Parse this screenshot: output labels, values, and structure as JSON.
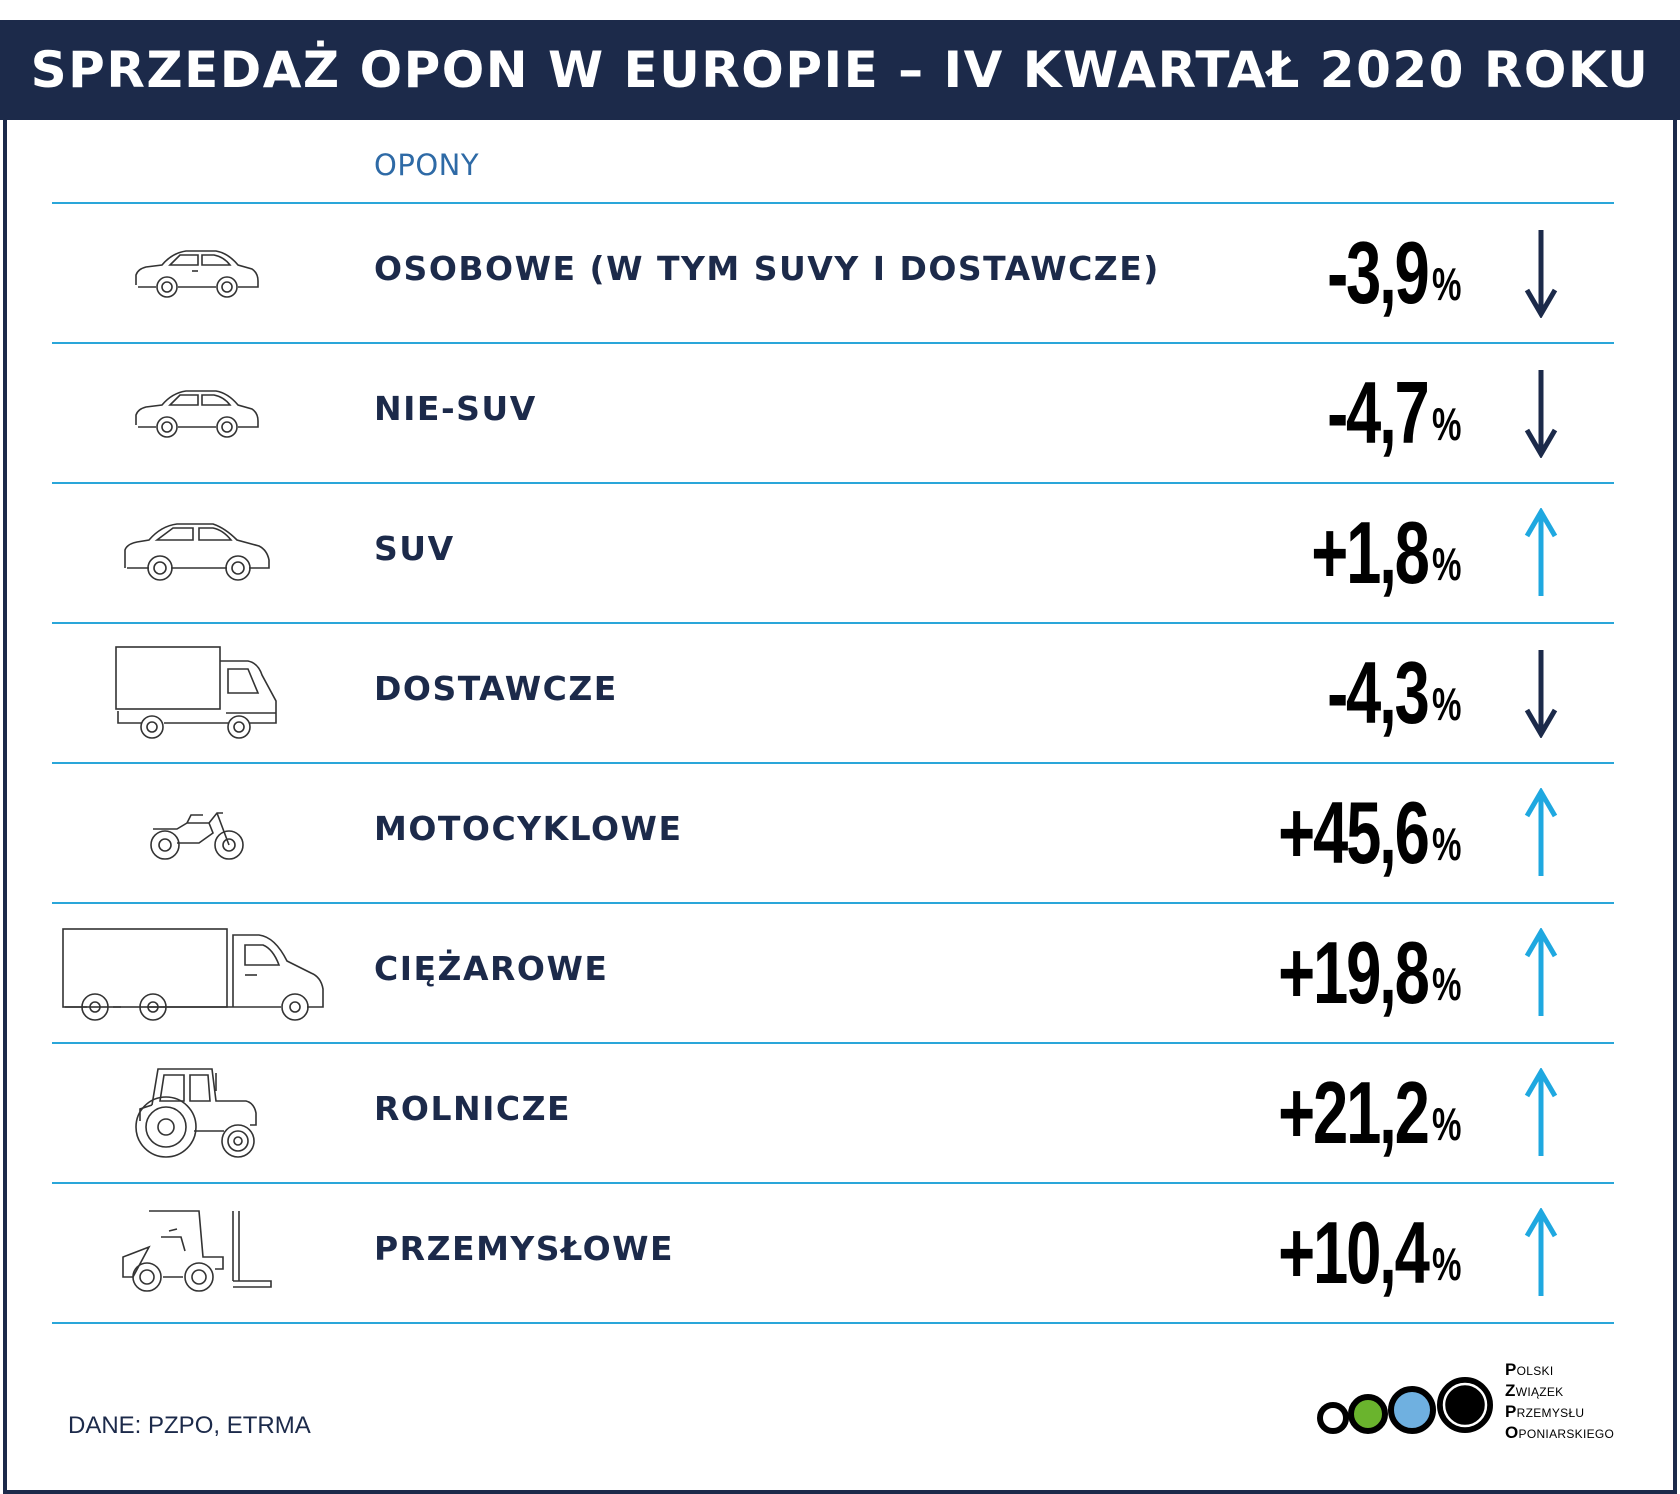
{
  "header": {
    "title": "SPRZEDAŻ OPON W EUROPIE – IV KWARTAŁ 2020 ROKU"
  },
  "column_label": "OPONY",
  "rows": [
    {
      "label": "OSOBOWE (W TYM SUVY I DOSTAWCZE)",
      "value": "-3,9",
      "unit": "%",
      "trend": "down",
      "icon": "car-icon"
    },
    {
      "label": "NIE-SUV",
      "value": "-4,7",
      "unit": "%",
      "trend": "down",
      "icon": "car-icon"
    },
    {
      "label": "SUV",
      "value": "+1,8",
      "unit": "%",
      "trend": "up",
      "icon": "suv-icon"
    },
    {
      "label": "DOSTAWCZE",
      "value": "-4,3",
      "unit": "%",
      "trend": "down",
      "icon": "van-truck-icon"
    },
    {
      "label": "MOTOCYKLOWE",
      "value": "+45,6",
      "unit": "%",
      "trend": "up",
      "icon": "motorcycle-icon"
    },
    {
      "label": "CIĘŻAROWE",
      "value": "+19,8",
      "unit": "%",
      "trend": "up",
      "icon": "lorry-icon"
    },
    {
      "label": "ROLNICZE",
      "value": "+21,2",
      "unit": "%",
      "trend": "up",
      "icon": "tractor-icon"
    },
    {
      "label": "PRZEMYSŁOWE",
      "value": "+10,4",
      "unit": "%",
      "trend": "up",
      "icon": "forklift-icon"
    }
  ],
  "source": "DANE: PZPO, ETRMA",
  "logo": {
    "lines": [
      {
        "cap": "P",
        "rest": "OLSKI"
      },
      {
        "cap": "Z",
        "rest": "WIĄZEK"
      },
      {
        "cap": "P",
        "rest": "RZEMYSŁU"
      },
      {
        "cap": "O",
        "rest": "PONIARSKIEGO"
      }
    ]
  },
  "colors": {
    "navy": "#1c2a4a",
    "rule": "#2aa6d9",
    "arrow_up": "#1fa8e0",
    "arrow_down": "#1c2a4a",
    "label_blue": "#2e6aa6",
    "logo_green": "#6ab42d",
    "logo_blue": "#6fb0e0"
  }
}
